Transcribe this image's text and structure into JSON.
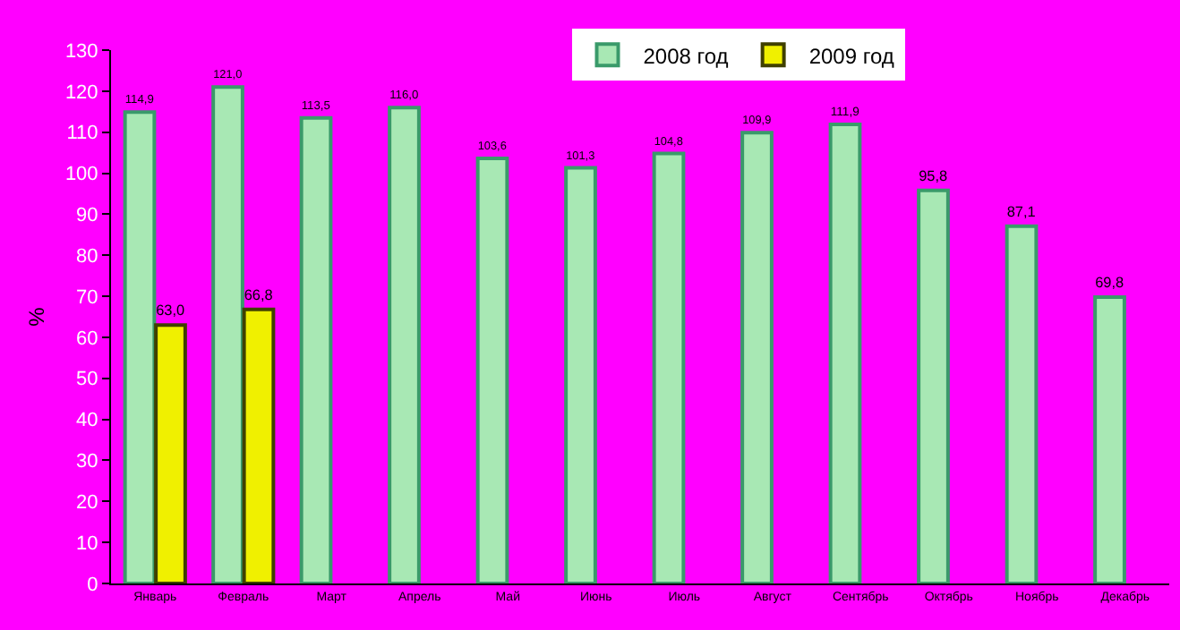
{
  "chart_data": {
    "type": "bar",
    "ylabel": "%",
    "categories": [
      "Январь",
      "Февраль",
      "Март",
      "Апрель",
      "Май",
      "Июнь",
      "Июль",
      "Август",
      "Сентябрь",
      "Октябрь",
      "Ноябрь",
      "Декабрь"
    ],
    "series": [
      {
        "name": "2008 год",
        "color": "#a8e8b4",
        "values": [
          114.9,
          121.0,
          113.5,
          116.0,
          103.6,
          101.3,
          104.8,
          109.9,
          111.9,
          95.8,
          87.1,
          69.8
        ],
        "value_labels": [
          "114,9",
          "121,0",
          "113,5",
          "116,0",
          "103,6",
          "101,3",
          "104,8",
          "109,9",
          "111,9",
          "95,8",
          "87,1",
          "69,8"
        ]
      },
      {
        "name": "2009 год",
        "color": "#f0f000",
        "values": [
          63.0,
          66.8,
          null,
          null,
          null,
          null,
          null,
          null,
          null,
          null,
          null,
          null
        ],
        "value_labels": [
          "63,0",
          "66,8",
          null,
          null,
          null,
          null,
          null,
          null,
          null,
          null,
          null,
          null
        ]
      }
    ],
    "ylim": [
      0,
      130
    ],
    "yticks": [
      0,
      10,
      20,
      30,
      40,
      50,
      60,
      70,
      80,
      90,
      100,
      110,
      120,
      130
    ],
    "grid": false,
    "legend": "top right"
  }
}
